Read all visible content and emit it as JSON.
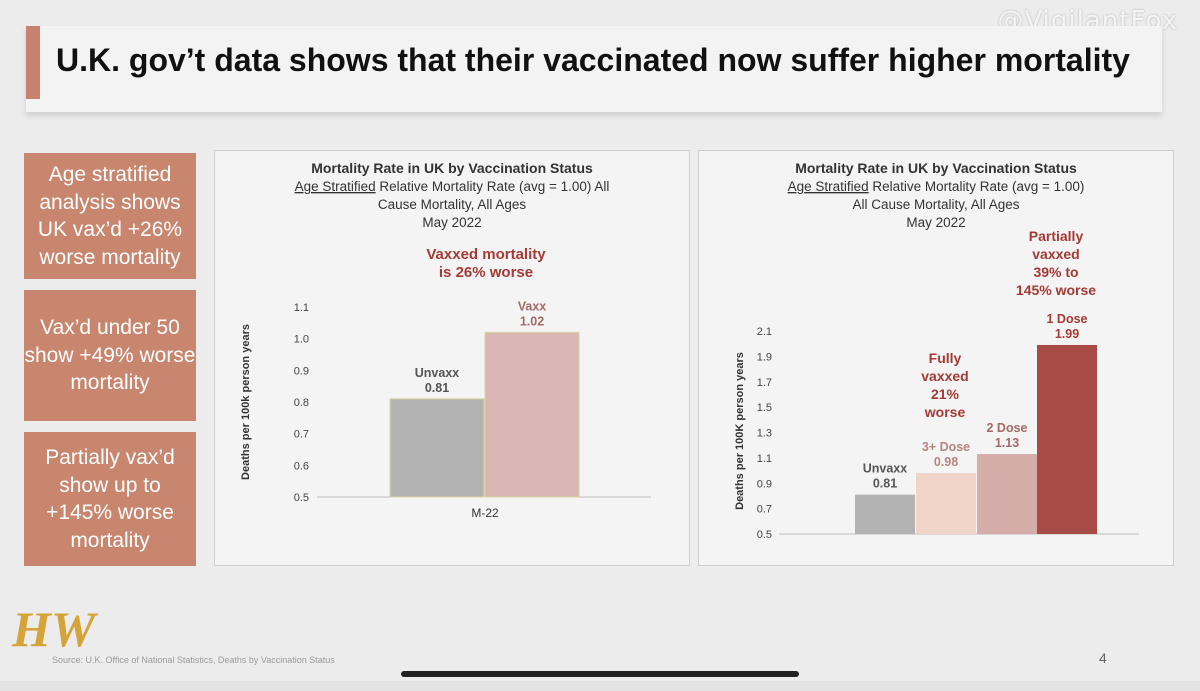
{
  "watermark": "@VigilantFox",
  "title": "U.K. gov’t data shows that their vaccinated now suffer higher mortality",
  "callouts": [
    "Age stratified analysis shows UK vax’d +26% worse mortality",
    "Vax’d under 50 show +49% worse mortality",
    "Partially vax’d show up to +145% worse mortality"
  ],
  "colors": {
    "accent": "#c7826f",
    "callout_bg": "#c8866f",
    "unvaxx": "#b3b3b3",
    "vaxx": "#d9b5b3",
    "dose3": "#f0d4c8",
    "dose2": "#d4aca8",
    "dose1": "#a84b46",
    "annotation": "#a43a35"
  },
  "chart_data": [
    {
      "type": "bar",
      "title": "Mortality Rate in UK by Vaccination Status",
      "subtitle_underlined": "Age Stratified",
      "subtitle_lines": [
        " Relative Mortality Rate (avg = 1.00) All",
        "Cause Mortality, All Ages",
        "May 2022"
      ],
      "annotation": [
        "Vaxxed  mortality",
        "is 26% worse"
      ],
      "ylabel": "Deaths per 100k person years",
      "xlabel": "M-22",
      "ylim": [
        0.5,
        1.1
      ],
      "yticks": [
        "0.5",
        "0.6",
        "0.7",
        "0.8",
        "0.9",
        "1.0",
        "1.1"
      ],
      "categories": [
        "Unvaxx",
        "Vaxx"
      ],
      "values": [
        0.81,
        1.02
      ],
      "value_labels": [
        "0.81",
        "1.02"
      ]
    },
    {
      "type": "bar",
      "title": "Mortality Rate in UK by Vaccination Status",
      "subtitle_underlined": "Age Stratified",
      "subtitle_lines": [
        " Relative Mortality Rate (avg = 1.00)",
        "All Cause Mortality, All Ages",
        "May 2022"
      ],
      "annotations": [
        [
          "Fully",
          "vaxxed",
          "21%",
          "worse"
        ],
        [
          "Partially",
          "vaxxed",
          "39% to",
          "145% worse"
        ]
      ],
      "ylabel": "Deaths per 100K person years",
      "ylim": [
        0.5,
        2.1
      ],
      "yticks": [
        "0.5",
        "0.7",
        "0.9",
        "1.1",
        "1.3",
        "1.5",
        "1.7",
        "1.9",
        "2.1"
      ],
      "categories": [
        "Unvaxx",
        "3+ Dose",
        "2 Dose",
        "1 Dose"
      ],
      "values": [
        0.81,
        0.98,
        1.13,
        1.99
      ],
      "value_labels": [
        "0.81",
        "0.98",
        "1.13",
        "1.99"
      ]
    }
  ],
  "footer": {
    "logo_text": "HW",
    "source": "Source: U.K. Office of National Statistics, Deaths by Vaccination Status",
    "page_number": "4"
  }
}
